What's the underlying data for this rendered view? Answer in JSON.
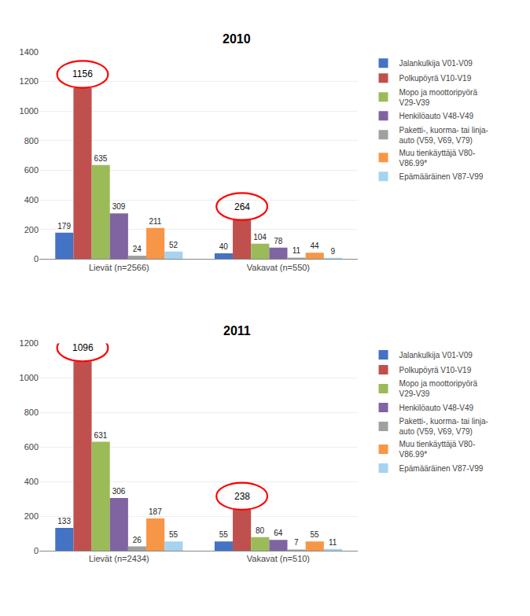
{
  "chart_data": [
    {
      "type": "bar",
      "title": "2010",
      "categories": [
        "Lievät (n=2566)",
        "Vakavat (n=550)"
      ],
      "series": [
        {
          "name": "Jalankulkija V01-V09",
          "color": "#4472C4",
          "values": [
            179,
            40
          ]
        },
        {
          "name": "Polkupöyrä V10-V19",
          "color": "#C0504D",
          "values": [
            1156,
            264
          ]
        },
        {
          "name": "Mopo ja moottoripyörä\nV29-V39",
          "color": "#9BBB59",
          "values": [
            635,
            104
          ]
        },
        {
          "name": "Henkilöauto V48-V49",
          "color": "#8064A2",
          "values": [
            309,
            78
          ]
        },
        {
          "name": "Paketti-, kuorma- tai linja-\nauto (V59, V69, V79)",
          "color": "#9FA0A0",
          "values": [
            24,
            11
          ]
        },
        {
          "name": "Muu tienkäyttäjä V80-\nV86.99*",
          "color": "#F79646",
          "values": [
            211,
            44
          ]
        },
        {
          "name": "Epämääräinen V87-V99",
          "color": "#A5D3F0",
          "values": [
            52,
            9
          ]
        }
      ],
      "ylim": [
        0,
        1400
      ],
      "yticks": [
        0,
        200,
        400,
        600,
        800,
        1000,
        1200,
        1400
      ],
      "grid": true,
      "data_labels": true,
      "legend": "right"
    },
    {
      "type": "bar",
      "title": "2011",
      "categories": [
        "Lievät (n=2434)",
        "Vakavat (n=510)"
      ],
      "series": [
        {
          "name": "Jalankulkija V01-V09",
          "color": "#4472C4",
          "values": [
            133,
            55
          ]
        },
        {
          "name": "Polkupöyrä V10-V19",
          "color": "#C0504D",
          "values": [
            1096,
            238
          ]
        },
        {
          "name": "Mopo ja moottoripyörä\nV29-V39",
          "color": "#9BBB59",
          "values": [
            631,
            80
          ]
        },
        {
          "name": "Henkilöauto V48-V49",
          "color": "#8064A2",
          "values": [
            306,
            64
          ]
        },
        {
          "name": "Paketti-, kuorma- tai linja-\nauto (V59, V69, V79)",
          "color": "#9FA0A0",
          "values": [
            26,
            7
          ]
        },
        {
          "name": "Muu tienkäyttäjä V80-\nV86.99*",
          "color": "#F79646",
          "values": [
            187,
            55
          ]
        },
        {
          "name": "Epämääräinen V87-V99",
          "color": "#A5D3F0",
          "values": [
            55,
            11
          ]
        }
      ],
      "ylim": [
        0,
        1200
      ],
      "yticks": [
        0,
        200,
        400,
        600,
        800,
        1000,
        1200
      ],
      "grid": true,
      "data_labels": true,
      "legend": "right"
    }
  ]
}
